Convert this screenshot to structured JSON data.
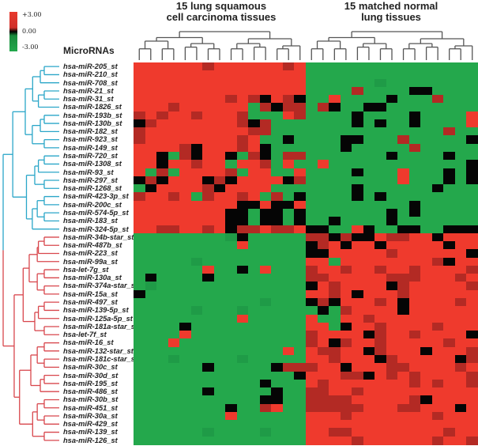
{
  "legend": {
    "max_label": "+3.00",
    "mid_label": "0.00",
    "min_label": "-3.00"
  },
  "headers": {
    "tumor": [
      "15 lung squamous",
      "cell carcinoma tissues"
    ],
    "normal": [
      "15 matched normal",
      "lung tissues"
    ]
  },
  "row_title": "MicroRNAs",
  "colors": {
    "R": "#ef3a2d",
    "r": "#b32a24",
    "K": "#050505",
    "g": "#1f9b47",
    "G": "#24a84c",
    "cluster_up": "#2aa6c8",
    "cluster_down": "#d8464c",
    "dendro_top": "#555555"
  },
  "chart_data": {
    "type": "heatmap",
    "title": "",
    "value_range": [
      -3.0,
      3.0
    ],
    "value_codes": {
      "R": 2.5,
      "r": 1.0,
      "K": 0.0,
      "g": -1.5,
      "G": -2.5
    },
    "column_groups": [
      {
        "name": "15 lung squamous cell carcinoma tissues",
        "count": 15
      },
      {
        "name": "15 matched normal lung tissues",
        "count": 15
      }
    ],
    "row_clusters": [
      {
        "name": "up",
        "count": 21
      },
      {
        "name": "down",
        "count": 26
      }
    ],
    "rows": [
      "hsa-miR-205_st",
      "hsa-miR-210_st",
      "hsa-miR-708_st",
      "hsa-miR-21_st",
      "hsa-miR-31_st",
      "hsa-miR-1826_st",
      "hsa-miR-193b_st",
      "hsa-miR-130b_st",
      "hsa-miR-182_st",
      "hsa-miR-923_st",
      "hsa-miR-149_st",
      "hsa-miR-720_st",
      "hsa-miR-1308_st",
      "hsa-miR-93_st",
      "hsa-miR-297_st",
      "hsa-miR-1268_st",
      "hsa-miR-423-3p_st",
      "hsa-miR-200c_st",
      "hsa-miR-574-5p_st",
      "hsa-miR-183_st",
      "hsa-miR-324-5p_st",
      "hsa-miR-34b-star_st",
      "hsa-miR-487b_st",
      "hsa-miR-223_st",
      "hsa-miR-99a_st",
      "hsa-let-7g_st",
      "hsa-miR-130a_st",
      "hsa-miR-374a-star_st",
      "hsa-miR-15a_st",
      "hsa-miR-497_st",
      "hsa-miR-139-5p_st",
      "hsa-miR-125a-5p_st",
      "hsa-miR-181a-star_st",
      "hsa-let-7f_st",
      "hsa-miR-16_st",
      "hsa-miR-132-star_st",
      "hsa-miR-181c-star_st",
      "hsa-miR-30c_st",
      "hsa-miR-30d_st",
      "hsa-miR-195_st",
      "hsa-miR-486_st",
      "hsa-miR-30b_st",
      "hsa-miR-451_st",
      "hsa-miR-30a_st",
      "hsa-miR-429_st",
      "hsa-miR-139_st",
      "hsa-miR-126_st"
    ],
    "matrix": [
      "RRRRRRrRRRRRRrRGGGGGGGGGGGGGGG",
      "RRRRRRRRRRRRRRRGGGGGGGGGGGGGGG",
      "RRRRRRRRRRRRRRRGGGGGGgGGGGGGGG",
      "RRRRRRRRRRRRRRRGGGGrGGGGKKGGGG",
      "RRRRRRRRrRrKRrKGGRGGGGKGGGrGGG",
      "RRRrRRRRRRGrKrrGrKGGKKGGGGGGGG",
      "rRrRRrRRRrGGGRrGGGGKGGGGKGGGGR",
      "KrRRRRRRRrKrGGGGGGGKGKGGKGGGGR",
      "rRRRRRRRRRrrGGGGGGGGGGGGGGGrGG",
      "rRRRRRRRRrRGGKGGGGKKGGGrGGGGGK",
      "RRRRrKRRRrRKGGGGGGKGGGGGrGGGGG",
      "RRKGrKRRKGrKGrrGGGGGGGKGGGGKGG",
      "RRKRRrRRGRRrGRGGRGGGGGGGGGGGGK",
      "RGrGRRRRrGRRGGRGGGGKGGGRGGGKGK",
      "KrKRRRKrKRRRRKrGGGGGGGGRGGGKGK",
      "GKRRRRrKRRRRGGGGGGGKGGGGGGKGGG",
      "rRRrRGrRRrRGrGKGGGGKGKGGGGGGGG",
      "RRRRRRRRRKKRKKRGGGGGGGGGKGGGGG",
      "RRRRRRRRKKGKKGKGGGGGGGKGKGGGGG",
      "RRRRRRRRKKGKKGKGGKGGGGKGGGGGGG",
      "RRrrRRrRKrrRrrRKKGGRKGGKKGGKKK",
      "GGGGGGGGgKGGGGGrrKrKKRrrRRKRRR",
      "GGGGGGGGGRGGGGGKrRKRRKRRRRRKRR",
      "GGGGGGGGGGGGGGGKKRRRRRrRRRRRRK",
      "GGGGGgGGGGGGGGGRRGRRRRRRRRrKRR",
      "GGGGGGRGGKGRGGGrRRrRRrRRrRRRRr",
      "GKGGGGKGGGGGGGGrrRRRRRrrrRRRrR",
      "GgGGGGGGGGGGGGGKRrRRRRKrRRRRRr",
      "KGGGGGGGGGGGGGGRRrRKRRRrRRRRRR",
      "GGGGGGGGGGGgGGGKrKRRRrRKRRRRrR",
      "GGGGGgGGGgGGGGGGKGrRRRRKRRRRRR",
      "GGGGGGGGGRGGGGGRGGRRrRRRRRRRRR",
      "GGGGKGGGGGGGGGGRRGKRRrRRRRrRRR",
      "GGGGRGGGGGGGGGGrRRRRKrRRrRRRRK",
      "GGGRGGGGGGGGGGGrRKrRRrRRRRRrRR",
      "GGGGGGGGGGGGGRGRrrRRKrRRRKRRRr",
      "GGGgGGGGGgGGGGGRRrRRRKrRRRRRKr",
      "GGGGGGKGGGGGKrrrRRKRRRrrRRRRrR",
      "GGGGGGGGGGGGGGKRRRrrKRrRrRRRRr",
      "GGGGGGGGGGGKGGGRrRRRRRRRrRrRRr",
      "GGGGGGKGGGGGKGGrrRRrRRRRRRRRRR",
      "GGGGGGGGGGGKKGGrrrrRRRRRrKRRRR",
      "GGGGGGGGKGGrRGGrrrrrRRRrrRRRKR",
      "GGGGGGGGRGGGGGGRRRrRRRRRRRrRRR",
      "GGGGGGGGGGGGGGGRRRRRRRRRRRRRRR",
      "GGGGGGgGGGGgGGGRRrrRRRRRRRRrRR",
      "GGGGGGGGGGGGGGGRRRRrRRRRRRrRRr"
    ]
  }
}
